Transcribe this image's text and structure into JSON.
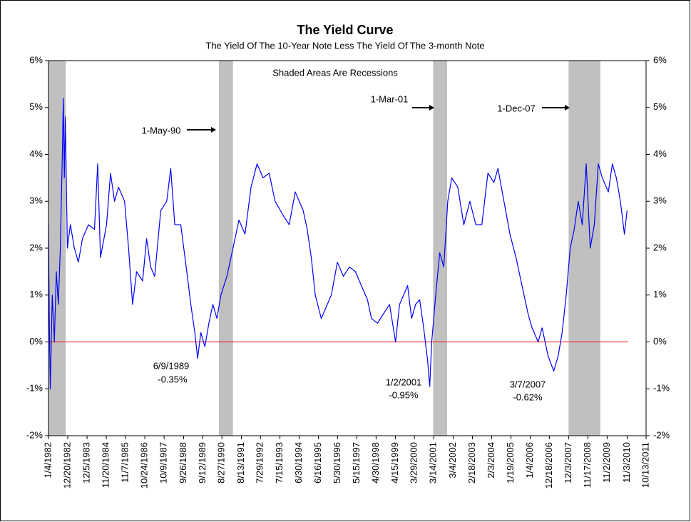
{
  "chart_data": {
    "type": "line",
    "title": "The Yield Curve",
    "subtitle": "The Yield Of The 10-Year Note Less The Yield Of The 3-month Note",
    "annotations": [
      "Shaded Areas Are Recessions",
      "1-May-90",
      "1-Mar-01",
      "1-Dec-07",
      "6/9/1989",
      "-0.35%",
      "1/2/2001",
      "-0.95%",
      "3/7/2007",
      "-0.62%"
    ],
    "color": "#0000ff",
    "ref_line": {
      "value": 0,
      "color": "#ff0000"
    },
    "recession_color": "#c0c0c0",
    "recessions": [
      [
        1981.9,
        1982.87
      ],
      [
        1990.5,
        1991.2
      ],
      [
        2001.17,
        2001.87
      ],
      [
        2007.92,
        2009.5
      ]
    ],
    "xlim": [
      1982.01,
      2011.78
    ],
    "xticks": [
      {
        "value": 1982.01,
        "label": "1/4/1982"
      },
      {
        "value": 1982.97,
        "label": "12/20/1982"
      },
      {
        "value": 1983.93,
        "label": "12/5/1983"
      },
      {
        "value": 1984.89,
        "label": "11/20/1984"
      },
      {
        "value": 1985.85,
        "label": "11/7/1985"
      },
      {
        "value": 1986.81,
        "label": "10/24/1986"
      },
      {
        "value": 1987.77,
        "label": "10/9/1987"
      },
      {
        "value": 1988.74,
        "label": "9/26/1988"
      },
      {
        "value": 1989.7,
        "label": "9/12/1989"
      },
      {
        "value": 1990.65,
        "label": "8/27/1990"
      },
      {
        "value": 1991.62,
        "label": "8/13/1991"
      },
      {
        "value": 1992.57,
        "label": "7/29/1992"
      },
      {
        "value": 1993.54,
        "label": "7/15/1993"
      },
      {
        "value": 1994.5,
        "label": "6/30/1994"
      },
      {
        "value": 1995.46,
        "label": "6/16/1995"
      },
      {
        "value": 1996.41,
        "label": "5/30/1996"
      },
      {
        "value": 1997.37,
        "label": "5/15/1997"
      },
      {
        "value": 1998.33,
        "label": "4/30/1998"
      },
      {
        "value": 1999.29,
        "label": "4/15/1999"
      },
      {
        "value": 2000.24,
        "label": "3/29/2000"
      },
      {
        "value": 2001.2,
        "label": "3/14/2001"
      },
      {
        "value": 2002.17,
        "label": "3/4/2002"
      },
      {
        "value": 2003.13,
        "label": "2/18/2003"
      },
      {
        "value": 2004.09,
        "label": "2/3/2004"
      },
      {
        "value": 2005.05,
        "label": "1/19/2005"
      },
      {
        "value": 2006.01,
        "label": "1/4/2006"
      },
      {
        "value": 2006.96,
        "label": "12/18/2006"
      },
      {
        "value": 2007.92,
        "label": "12/3/2007"
      },
      {
        "value": 2008.88,
        "label": "11/17/2008"
      },
      {
        "value": 2009.84,
        "label": "11/2/2009"
      },
      {
        "value": 2010.84,
        "label": "11/3/2010"
      },
      {
        "value": 2011.78,
        "label": "10/13/2011"
      }
    ],
    "ylim": [
      -2,
      6
    ],
    "yticks": [
      {
        "value": -2,
        "label": "-2%"
      },
      {
        "value": -1,
        "label": "-1%"
      },
      {
        "value": 0,
        "label": "0%"
      },
      {
        "value": 1,
        "label": "1%"
      },
      {
        "value": 2,
        "label": "2%"
      },
      {
        "value": 3,
        "label": "3%"
      },
      {
        "value": 4,
        "label": "4%"
      },
      {
        "value": 5,
        "label": "5%"
      },
      {
        "value": 6,
        "label": "6%"
      }
    ],
    "y2lim": [
      -2,
      6
    ],
    "y2ticks": [
      {
        "value": -2,
        "label": "-2%"
      },
      {
        "value": -1,
        "label": "-1%"
      },
      {
        "value": 0,
        "label": "0%"
      },
      {
        "value": 1,
        "label": "1%"
      },
      {
        "value": 2,
        "label": "2%"
      },
      {
        "value": 3,
        "label": "3%"
      },
      {
        "value": 4,
        "label": "4%"
      },
      {
        "value": 5,
        "label": "5%"
      },
      {
        "value": 6,
        "label": "6%"
      }
    ],
    "x": [
      1982.01,
      1982.05,
      1982.1,
      1982.2,
      1982.3,
      1982.4,
      1982.5,
      1982.6,
      1982.7,
      1982.75,
      1982.8,
      1982.85,
      1982.95,
      1983.1,
      1983.3,
      1983.5,
      1983.7,
      1984.0,
      1984.3,
      1984.46,
      1984.6,
      1984.9,
      1985.1,
      1985.3,
      1985.5,
      1985.8,
      1986.0,
      1986.2,
      1986.4,
      1986.7,
      1986.9,
      1987.1,
      1987.3,
      1987.6,
      1987.9,
      1988.1,
      1988.3,
      1988.6,
      1988.9,
      1989.1,
      1989.3,
      1989.44,
      1989.6,
      1989.8,
      1990.0,
      1990.2,
      1990.4,
      1990.6,
      1990.9,
      1991.2,
      1991.5,
      1991.8,
      1992.1,
      1992.4,
      1992.7,
      1993.0,
      1993.3,
      1993.7,
      1994.0,
      1994.3,
      1994.7,
      1994.9,
      1995.1,
      1995.3,
      1995.6,
      1995.9,
      1996.1,
      1996.4,
      1996.7,
      1997.0,
      1997.3,
      1997.6,
      1997.9,
      1998.1,
      1998.4,
      1998.7,
      1999.0,
      1999.3,
      1999.5,
      1999.9,
      2000.1,
      2000.3,
      2000.5,
      2000.7,
      2000.9,
      2001.0,
      2001.1,
      2001.3,
      2001.5,
      2001.7,
      2001.9,
      2002.1,
      2002.4,
      2002.7,
      2003.0,
      2003.3,
      2003.6,
      2003.9,
      2004.2,
      2004.4,
      2004.7,
      2005.0,
      2005.3,
      2005.6,
      2005.9,
      2006.1,
      2006.4,
      2006.6,
      2006.9,
      2007.18,
      2007.4,
      2007.6,
      2007.8,
      2008.0,
      2008.2,
      2008.4,
      2008.6,
      2008.8,
      2009.0,
      2009.2,
      2009.4,
      2009.6,
      2009.9,
      2010.1,
      2010.3,
      2010.5,
      2010.7,
      2010.83
    ],
    "values": [
      2.5,
      0.5,
      -1.0,
      1.0,
      0.0,
      1.5,
      0.8,
      2.0,
      4.0,
      5.2,
      3.5,
      4.8,
      2.0,
      2.5,
      2.0,
      1.7,
      2.2,
      2.5,
      2.4,
      3.8,
      1.8,
      2.5,
      3.6,
      3.0,
      3.3,
      3.0,
      2.0,
      0.8,
      1.5,
      1.3,
      2.2,
      1.6,
      1.4,
      2.8,
      3.0,
      3.7,
      2.5,
      2.5,
      1.5,
      0.8,
      0.2,
      -0.35,
      0.2,
      -0.1,
      0.4,
      0.8,
      0.5,
      1.0,
      1.4,
      2.0,
      2.6,
      2.3,
      3.3,
      3.8,
      3.5,
      3.6,
      3.0,
      2.7,
      2.5,
      3.2,
      2.8,
      2.4,
      1.8,
      1.0,
      0.5,
      0.8,
      1.0,
      1.7,
      1.4,
      1.6,
      1.5,
      1.2,
      0.9,
      0.5,
      0.4,
      0.6,
      0.8,
      0.0,
      0.8,
      1.2,
      0.5,
      0.8,
      0.9,
      0.3,
      -0.4,
      -0.95,
      0.0,
      1.0,
      1.9,
      1.6,
      3.0,
      3.5,
      3.3,
      2.5,
      3.0,
      2.5,
      2.5,
      3.6,
      3.4,
      3.7,
      3.0,
      2.3,
      1.8,
      1.2,
      0.6,
      0.3,
      0.0,
      0.3,
      -0.3,
      -0.62,
      -0.3,
      0.2,
      1.0,
      2.0,
      2.4,
      3.0,
      2.5,
      3.8,
      2.0,
      2.5,
      3.8,
      3.5,
      3.2,
      3.8,
      3.5,
      3.0,
      2.3,
      2.8
    ]
  }
}
